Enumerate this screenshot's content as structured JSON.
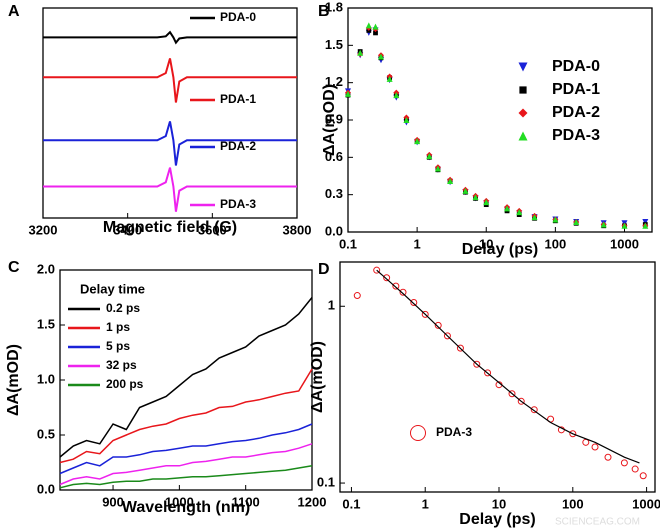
{
  "chart_data": [
    {
      "panel": "A",
      "type": "line",
      "xlabel": "Magnetic field (G)",
      "xlim": [
        3200,
        3800
      ],
      "xticks": [
        3200,
        3400,
        3600,
        3800
      ],
      "ylim": [
        0,
        10
      ],
      "x": [
        3200,
        3470,
        3490,
        3500,
        3508,
        3514,
        3522,
        3540,
        3800
      ],
      "series": [
        {
          "name": "PDA-0",
          "color": "#000000",
          "values": [
            8.6,
            8.6,
            8.65,
            8.85,
            8.6,
            8.35,
            8.55,
            8.6,
            8.6
          ]
        },
        {
          "name": "PDA-1",
          "color": "#e8161b",
          "values": [
            6.7,
            6.7,
            6.9,
            7.6,
            6.7,
            5.5,
            6.5,
            6.7,
            6.7
          ]
        },
        {
          "name": "PDA-2",
          "color": "#1a22d8",
          "values": [
            3.7,
            3.7,
            3.9,
            4.6,
            3.7,
            2.5,
            3.5,
            3.7,
            3.7
          ]
        },
        {
          "name": "PDA-3",
          "color": "#ee22ee",
          "values": [
            1.5,
            1.5,
            1.7,
            2.4,
            1.5,
            0.3,
            1.3,
            1.5,
            1.5
          ]
        }
      ]
    },
    {
      "panel": "B",
      "type": "scatter",
      "xlabel": "Delay (ps)",
      "ylabel": "ΔA(mOD)",
      "xscale": "log",
      "xlim": [
        0.1,
        2500
      ],
      "xticks": [
        0.1,
        1,
        10,
        100,
        1000
      ],
      "ylim": [
        0,
        1.8
      ],
      "yticks": [
        {
          "value": 0,
          "label": "0.0"
        },
        0.3,
        0.6,
        0.9,
        1.2,
        1.5,
        1.8
      ],
      "x": [
        0.1,
        0.15,
        0.2,
        0.25,
        0.3,
        0.4,
        0.5,
        0.7,
        1,
        1.5,
        2,
        3,
        5,
        7,
        10,
        20,
        30,
        50,
        100,
        200,
        500,
        1000,
        2000
      ],
      "series": [
        {
          "name": "PDA-0",
          "color": "#1a22d8",
          "marker": "triangle-down",
          "values": [
            1.13,
            1.42,
            1.6,
            1.62,
            1.38,
            1.22,
            1.08,
            0.88,
            0.72,
            0.6,
            0.5,
            0.4,
            0.32,
            0.27,
            0.23,
            0.18,
            0.15,
            0.12,
            0.1,
            0.08,
            0.07,
            0.07,
            0.08
          ]
        },
        {
          "name": "PDA-1",
          "color": "#000000",
          "marker": "square",
          "values": [
            1.1,
            1.45,
            1.62,
            1.6,
            1.4,
            1.24,
            1.1,
            0.9,
            0.73,
            0.6,
            0.5,
            0.41,
            0.32,
            0.27,
            0.22,
            0.17,
            0.14,
            0.11,
            0.09,
            0.07,
            0.05,
            0.05,
            0.06
          ]
        },
        {
          "name": "PDA-2",
          "color": "#e8161b",
          "marker": "diamond",
          "values": [
            1.12,
            1.43,
            1.64,
            1.63,
            1.42,
            1.25,
            1.12,
            0.92,
            0.74,
            0.62,
            0.52,
            0.42,
            0.34,
            0.29,
            0.25,
            0.2,
            0.17,
            0.13,
            0.1,
            0.08,
            0.06,
            0.05,
            0.05
          ]
        },
        {
          "name": "PDA-3",
          "color": "#22dd22",
          "marker": "triangle-up",
          "values": [
            1.11,
            1.44,
            1.66,
            1.65,
            1.41,
            1.23,
            1.1,
            0.9,
            0.73,
            0.61,
            0.51,
            0.41,
            0.33,
            0.28,
            0.24,
            0.19,
            0.16,
            0.12,
            0.1,
            0.08,
            0.06,
            0.05,
            0.05
          ]
        }
      ]
    },
    {
      "panel": "C",
      "type": "line",
      "xlabel": "Wavelength (nm)",
      "ylabel": "ΔA(mOD)",
      "legend_title": "Delay time",
      "xlim": [
        820,
        1200
      ],
      "xticks": [
        900,
        1000,
        1100,
        1200
      ],
      "ylim": [
        0,
        2
      ],
      "yticks": [
        {
          "value": 0,
          "label": "0.0"
        },
        0.5,
        {
          "value": 1,
          "label": "1.0"
        },
        1.5,
        {
          "value": 2,
          "label": "2.0"
        }
      ],
      "x": [
        820,
        840,
        860,
        880,
        900,
        920,
        940,
        960,
        980,
        1000,
        1020,
        1040,
        1060,
        1080,
        1100,
        1120,
        1140,
        1160,
        1180,
        1200
      ],
      "series": [
        {
          "name": "0.2 ps",
          "color": "#000000",
          "values": [
            0.3,
            0.4,
            0.45,
            0.42,
            0.6,
            0.55,
            0.75,
            0.8,
            0.85,
            0.95,
            1.05,
            1.1,
            1.2,
            1.25,
            1.3,
            1.4,
            1.45,
            1.5,
            1.6,
            1.75
          ]
        },
        {
          "name": "1 ps",
          "color": "#e8161b",
          "values": [
            0.25,
            0.28,
            0.35,
            0.33,
            0.45,
            0.5,
            0.55,
            0.58,
            0.6,
            0.65,
            0.68,
            0.7,
            0.75,
            0.76,
            0.8,
            0.82,
            0.85,
            0.88,
            0.9,
            1.1
          ]
        },
        {
          "name": "5 ps",
          "color": "#1a22d8",
          "values": [
            0.15,
            0.2,
            0.25,
            0.22,
            0.3,
            0.3,
            0.32,
            0.35,
            0.36,
            0.38,
            0.4,
            0.4,
            0.42,
            0.44,
            0.45,
            0.47,
            0.5,
            0.52,
            0.55,
            0.6
          ]
        },
        {
          "name": "32 ps",
          "color": "#ee22ee",
          "values": [
            0.05,
            0.1,
            0.12,
            0.1,
            0.15,
            0.16,
            0.18,
            0.2,
            0.22,
            0.22,
            0.25,
            0.26,
            0.28,
            0.3,
            0.3,
            0.32,
            0.34,
            0.35,
            0.38,
            0.42
          ]
        },
        {
          "name": "200 ps",
          "color": "#1a8a1a",
          "values": [
            0.02,
            0.05,
            0.06,
            0.05,
            0.07,
            0.08,
            0.08,
            0.1,
            0.1,
            0.11,
            0.12,
            0.12,
            0.13,
            0.14,
            0.15,
            0.16,
            0.17,
            0.18,
            0.2,
            0.22
          ]
        }
      ]
    },
    {
      "panel": "D",
      "type": "scatter",
      "xlabel": "Delay (ps)",
      "ylabel": "ΔA(mOD)",
      "xscale": "log",
      "yscale": "log",
      "xlim": [
        0.07,
        1300
      ],
      "xticks": [
        0.1,
        1,
        10,
        100,
        1000
      ],
      "ylim": [
        0.089,
        1.78
      ],
      "yticks": [
        0.1,
        1
      ],
      "x": [
        0.12,
        0.22,
        0.3,
        0.4,
        0.5,
        0.7,
        1,
        1.5,
        2,
        3,
        5,
        7,
        10,
        15,
        20,
        30,
        50,
        70,
        100,
        150,
        200,
        300,
        500,
        700,
        900
      ],
      "series": [
        {
          "name": "PDA-3",
          "color": "#e8161b",
          "marker": "circle-open",
          "values": [
            1.15,
            1.6,
            1.45,
            1.3,
            1.2,
            1.05,
            0.9,
            0.78,
            0.68,
            0.58,
            0.47,
            0.42,
            0.36,
            0.32,
            0.29,
            0.26,
            0.23,
            0.2,
            0.19,
            0.17,
            0.16,
            0.14,
            0.13,
            0.12,
            0.11
          ]
        }
      ],
      "fit": {
        "color": "#000000",
        "x": [
          0.22,
          0.5,
          1,
          2,
          5,
          10,
          20,
          50,
          100,
          200,
          500,
          800
        ],
        "values": [
          1.6,
          1.18,
          0.9,
          0.68,
          0.47,
          0.37,
          0.29,
          0.22,
          0.19,
          0.17,
          0.14,
          0.13
        ]
      }
    }
  ],
  "watermark": "SCIENCEAG.COM"
}
